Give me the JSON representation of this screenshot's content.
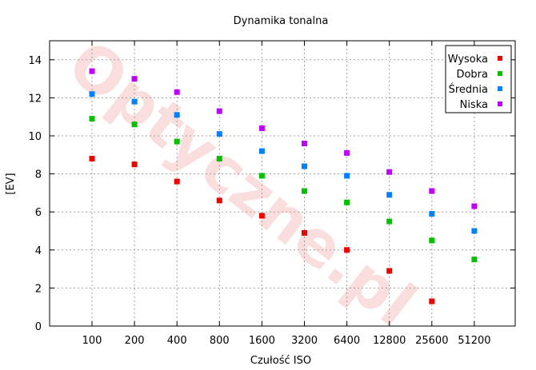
{
  "chart_data": {
    "type": "scatter",
    "title": "Dynamika tonalna",
    "xlabel": "Czułość ISO",
    "ylabel": "[EV]",
    "categories": [
      "100",
      "200",
      "400",
      "800",
      "1600",
      "3200",
      "6400",
      "12800",
      "25600",
      "51200"
    ],
    "ylim": [
      0,
      15
    ],
    "yticks": [
      0,
      2,
      4,
      6,
      8,
      10,
      12,
      14
    ],
    "grid": true,
    "legend_position": "top-right",
    "watermark": "Optyczne.pl",
    "series": [
      {
        "name": "Wysoka",
        "color": "#ee0000",
        "values": [
          8.8,
          8.5,
          7.6,
          6.6,
          5.8,
          4.9,
          4.0,
          2.9,
          1.3,
          null
        ]
      },
      {
        "name": "Dobra",
        "color": "#00c000",
        "values": [
          10.9,
          10.6,
          9.7,
          8.8,
          7.9,
          7.1,
          6.5,
          5.5,
          4.5,
          3.5
        ]
      },
      {
        "name": "Średnia",
        "color": "#0080ff",
        "values": [
          12.2,
          11.8,
          11.1,
          10.1,
          9.2,
          8.4,
          7.9,
          6.9,
          5.9,
          5.0
        ]
      },
      {
        "name": "Niska",
        "color": "#c000ff",
        "values": [
          13.4,
          13.0,
          12.3,
          11.3,
          10.4,
          9.6,
          9.1,
          8.1,
          7.1,
          6.3
        ]
      }
    ]
  }
}
